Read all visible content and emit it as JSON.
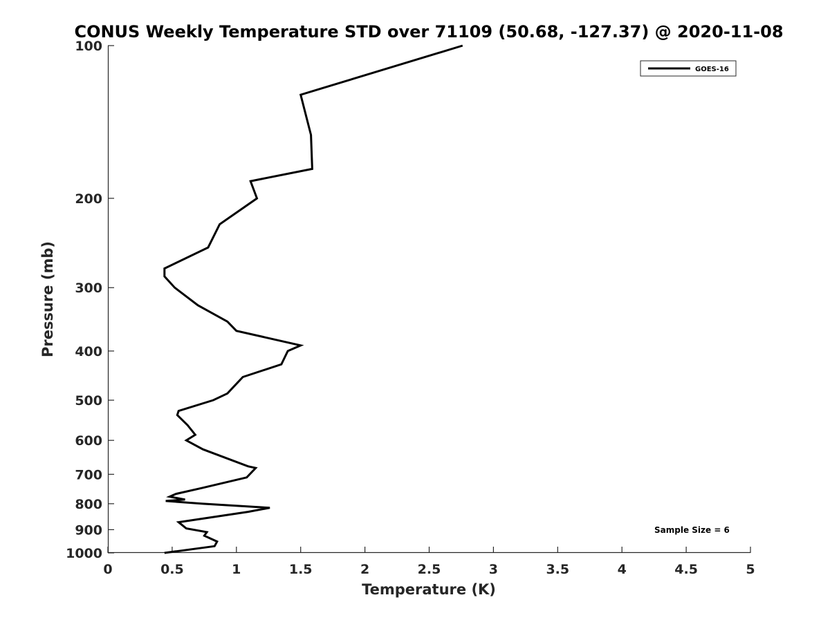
{
  "chart_data": {
    "type": "line",
    "title": "CONUS Weekly Temperature STD over 71109 (50.68, -127.37) @ 2020-11-08",
    "xlabel": "Temperature (K)",
    "ylabel": "Pressure (mb)",
    "xlim": [
      0,
      5
    ],
    "ylim": [
      100,
      1000
    ],
    "y_scale": "log",
    "y_reversed": true,
    "x_ticks": [
      "0",
      "0.5",
      "1",
      "1.5",
      "2",
      "2.5",
      "3",
      "3.5",
      "4",
      "4.5",
      "5"
    ],
    "y_ticks": [
      "100",
      "200",
      "300",
      "400",
      "500",
      "600",
      "700",
      "800",
      "900",
      "1000"
    ],
    "grid": false,
    "legend_position": "top-right",
    "annotation": "Sample Size = 6",
    "series": [
      {
        "name": "GOES-16",
        "color": "#000000",
        "points": [
          [
            2.76,
            100
          ],
          [
            1.5,
            125
          ],
          [
            1.58,
            150
          ],
          [
            1.59,
            175
          ],
          [
            1.11,
            185
          ],
          [
            1.16,
            200
          ],
          [
            0.87,
            225
          ],
          [
            0.78,
            250
          ],
          [
            0.44,
            275
          ],
          [
            0.44,
            285
          ],
          [
            0.52,
            300
          ],
          [
            0.7,
            325
          ],
          [
            0.93,
            350
          ],
          [
            1.0,
            365
          ],
          [
            1.5,
            390
          ],
          [
            1.4,
            400
          ],
          [
            1.35,
            425
          ],
          [
            1.05,
            450
          ],
          [
            0.98,
            470
          ],
          [
            0.93,
            485
          ],
          [
            0.82,
            500
          ],
          [
            0.55,
            525
          ],
          [
            0.54,
            535
          ],
          [
            0.62,
            560
          ],
          [
            0.68,
            585
          ],
          [
            0.61,
            600
          ],
          [
            0.74,
            625
          ],
          [
            1.09,
            675
          ],
          [
            1.15,
            680
          ],
          [
            1.08,
            710
          ],
          [
            0.73,
            745
          ],
          [
            0.53,
            765
          ],
          [
            0.48,
            775
          ],
          [
            0.6,
            785
          ],
          [
            0.45,
            790
          ],
          [
            0.74,
            800
          ],
          [
            1.26,
            815
          ],
          [
            1.09,
            830
          ],
          [
            0.55,
            870
          ],
          [
            0.61,
            895
          ],
          [
            0.77,
            910
          ],
          [
            0.75,
            925
          ],
          [
            0.85,
            950
          ],
          [
            0.83,
            970
          ],
          [
            0.44,
            1000
          ]
        ]
      }
    ]
  }
}
